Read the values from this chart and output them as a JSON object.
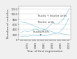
{
  "title": "",
  "xlabel": "Year of first registration",
  "ylabel": "Number of vehicles",
  "years": [
    1971,
    1972,
    1973,
    1974,
    1975,
    1976,
    1977,
    1978,
    1979,
    1980,
    1981,
    1982,
    1983,
    1984,
    1985,
    1986,
    1987,
    1988,
    1989,
    1990,
    1991,
    1992,
    1993,
    1994,
    1995,
    1996,
    1997,
    1998,
    1999,
    2000
  ],
  "trucks_tractors": [
    280,
    300,
    330,
    330,
    310,
    320,
    340,
    370,
    400,
    410,
    390,
    370,
    360,
    370,
    390,
    410,
    450,
    510,
    570,
    630,
    640,
    620,
    610,
    640,
    690,
    760,
    840,
    940,
    1060,
    1200
  ],
  "tractor_units": [
    700,
    680,
    670,
    660,
    640,
    620,
    600,
    570,
    540,
    510,
    490,
    460,
    440,
    420,
    400,
    380,
    360,
    340,
    320,
    300,
    285,
    270,
    255,
    240,
    230,
    220,
    210,
    200,
    190,
    180
  ],
  "trucks_hgvs": [
    120,
    125,
    128,
    130,
    125,
    135,
    145,
    155,
    160,
    158,
    150,
    142,
    140,
    142,
    148,
    150,
    158,
    175,
    195,
    215,
    225,
    230,
    250,
    280,
    330,
    400,
    480,
    580,
    710,
    850
  ],
  "line_color_tt": "#99ccdd",
  "line_color_tu": "#99ccdd",
  "line_color_hgv": "#99ccdd",
  "ylim": [
    0,
    1300
  ],
  "ytick_labels": [
    "0",
    "200",
    "400",
    "600",
    "800",
    "1000",
    "1200"
  ],
  "ytick_vals": [
    0,
    200,
    400,
    600,
    800,
    1000,
    1200
  ],
  "label_trucks_tractors": "Trucks + tractor units",
  "label_tractor_units": "Tractor units",
  "label_trucks_hgvs": "Trucks/HGVs",
  "bg_color": "#f0f0f0",
  "plot_bg": "#ffffff",
  "grid_color": "#cccccc",
  "text_color": "#444444",
  "label_fontsize": 3.2,
  "tick_fontsize": 2.8,
  "annotation_fontsize": 2.8,
  "linewidth": 0.5
}
